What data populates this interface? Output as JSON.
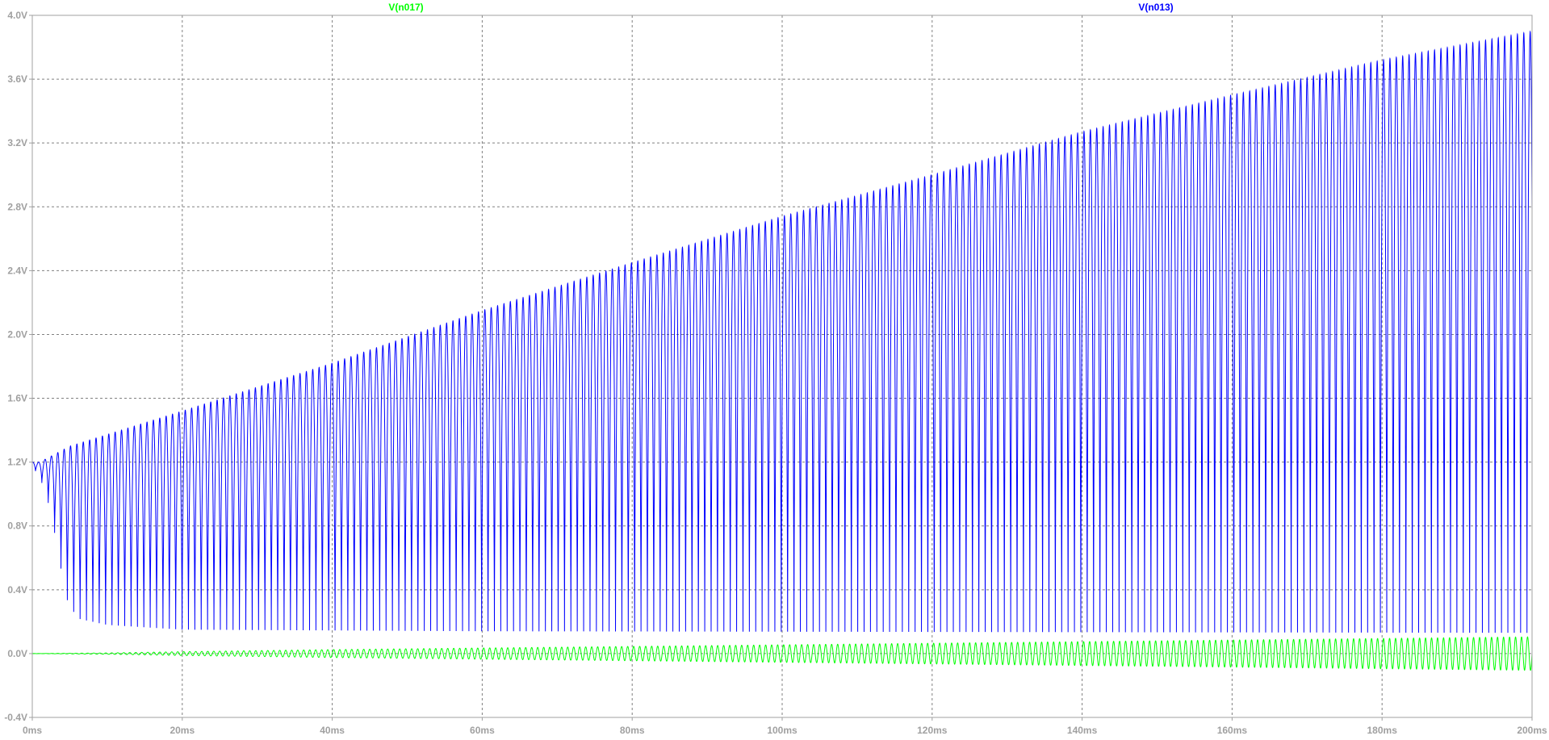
{
  "chart_data": {
    "type": "line",
    "xlabel": "",
    "ylabel": "",
    "xlim": [
      0,
      200
    ],
    "ylim": [
      -0.4,
      4.0
    ],
    "x_unit": "ms",
    "y_unit": "V",
    "grid": true,
    "grid_style": "dashed",
    "x_ticks": [
      0,
      20,
      40,
      60,
      80,
      100,
      120,
      140,
      160,
      180,
      200
    ],
    "y_ticks": [
      -0.4,
      0.0,
      0.4,
      0.8,
      1.2,
      1.6,
      2.0,
      2.4,
      2.8,
      3.2,
      3.6,
      4.0
    ],
    "x_tick_labels": [
      "0ms",
      "20ms",
      "40ms",
      "60ms",
      "80ms",
      "100ms",
      "120ms",
      "140ms",
      "160ms",
      "180ms",
      "200ms"
    ],
    "y_tick_labels": [
      "-0.4V",
      "0.0V",
      "0.4V",
      "0.8V",
      "1.2V",
      "1.6V",
      "2.0V",
      "2.4V",
      "2.8V",
      "3.2V",
      "3.6V",
      "4.0V"
    ],
    "series": [
      {
        "name": "V(n017)",
        "color": "#00ff00",
        "shape": "sine",
        "period_ms": 0.8,
        "envelope_amplitude": [
          [
            0,
            0.0
          ],
          [
            10,
            0.004
          ],
          [
            20,
            0.012
          ],
          [
            40,
            0.025
          ],
          [
            60,
            0.035
          ],
          [
            80,
            0.045
          ],
          [
            100,
            0.055
          ],
          [
            120,
            0.065
          ],
          [
            140,
            0.075
          ],
          [
            160,
            0.085
          ],
          [
            180,
            0.095
          ],
          [
            200,
            0.105
          ]
        ],
        "offset": 0.0
      },
      {
        "name": "V(n013)",
        "color": "#0000ff",
        "shape": "oscillation",
        "period_ms": 0.85,
        "peak_envelope": [
          [
            0,
            1.2
          ],
          [
            1,
            1.2
          ],
          [
            5,
            1.3
          ],
          [
            20,
            1.52
          ],
          [
            40,
            1.82
          ],
          [
            60,
            2.15
          ],
          [
            80,
            2.45
          ],
          [
            100,
            2.74
          ],
          [
            120,
            3.0
          ],
          [
            140,
            3.27
          ],
          [
            160,
            3.5
          ],
          [
            180,
            3.72
          ],
          [
            200,
            3.9
          ]
        ],
        "trough_envelope": [
          [
            0,
            1.18
          ],
          [
            1.5,
            1.05
          ],
          [
            2.5,
            0.88
          ],
          [
            3.5,
            0.62
          ],
          [
            4.5,
            0.35
          ],
          [
            6,
            0.22
          ],
          [
            10,
            0.18
          ],
          [
            20,
            0.15
          ],
          [
            60,
            0.14
          ],
          [
            200,
            0.13
          ]
        ]
      }
    ]
  },
  "colors": {
    "background": "#ffffff",
    "grid": "#808080",
    "axis_text": "#a0a0a0"
  }
}
